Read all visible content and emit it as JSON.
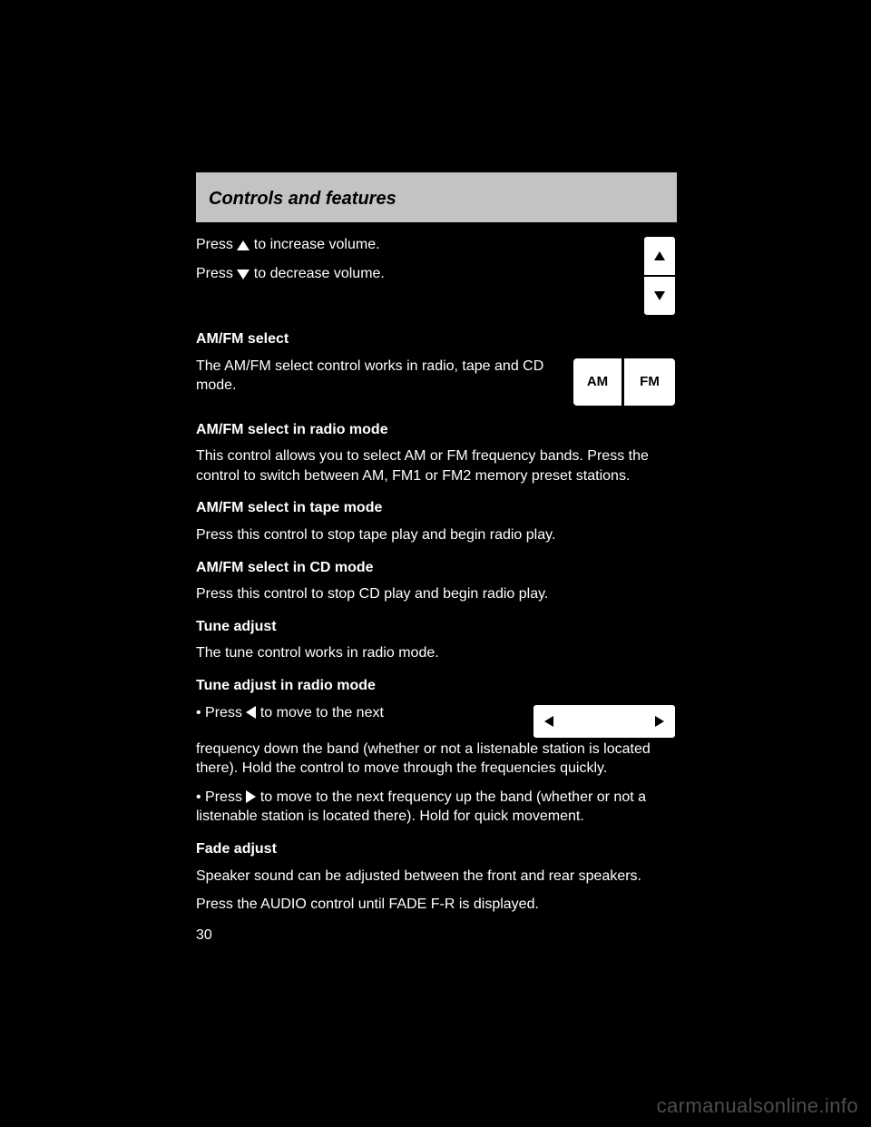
{
  "header": {
    "title": "Controls and features"
  },
  "body": {
    "volume": {
      "up_line": "to increase volume.",
      "down_line": "to decrease volume."
    },
    "band_select": {
      "heading": "AM/FM select",
      "line1": "The AM/FM select control works in radio, tape and CD mode.",
      "line2": "AM/FM select in radio mode",
      "line3": "This control allows you to select AM or FM frequency bands. Press the control to switch between AM, FM1 or FM2 memory preset stations.",
      "line4": "AM/FM select in tape mode",
      "line5": "Press this control to stop tape play and begin radio play.",
      "line6": "AM/FM select in CD mode",
      "line7": "Press this control to stop CD play and begin radio play.",
      "am_label": "AM",
      "fm_label": "FM"
    },
    "tune": {
      "heading": "Tune adjust",
      "intro": "The tune control works in radio mode.",
      "sub": "Tune adjust in radio mode",
      "left1": "to move to the next",
      "left2": "frequency down the band (whether or not a listenable station is located there). Hold the control to move through the frequencies quickly.",
      "right": "to move to the next frequency up the band (whether or not a listenable station is located there). Hold for quick movement."
    },
    "fade": {
      "heading": "Fade adjust",
      "line1": "Speaker sound can be adjusted between the front and rear speakers.",
      "line2": "Press the AUDIO control until FADE F-R is displayed."
    }
  },
  "page_number": "30",
  "watermark": "carmanualsonline.info"
}
